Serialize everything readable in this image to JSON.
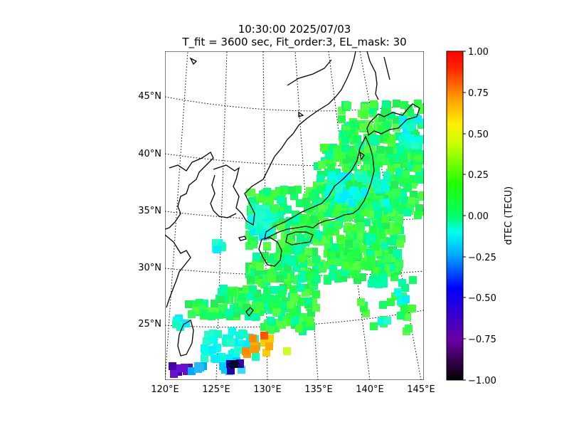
{
  "title_line1": "10:30:00 2025/07/03",
  "title_line2": "T_fit = 3600 sec, Fit_order:3, EL_mask: 30",
  "map": {
    "lon_labels": [
      "120°E",
      "125°E",
      "130°E",
      "135°E",
      "140°E",
      "145°E"
    ],
    "lat_labels": [
      "25°N",
      "30°N",
      "35°N",
      "40°N",
      "45°N"
    ],
    "region": "Japan and surrounding seas"
  },
  "colorbar": {
    "label": "dTEC (TECU)",
    "min": -1.0,
    "max": 1.0,
    "tick_labels": [
      "1.00",
      "0.75",
      "0.50",
      "0.25",
      "0.00",
      "−0.25",
      "−0.50",
      "−0.75",
      "−1.00"
    ],
    "colormap": "nipy_spectral-like",
    "stops": [
      "#000000",
      "#6a00a0",
      "#0000ff",
      "#00ffff",
      "#00ff00",
      "#ffff00",
      "#ff8800",
      "#ff0000"
    ]
  }
}
